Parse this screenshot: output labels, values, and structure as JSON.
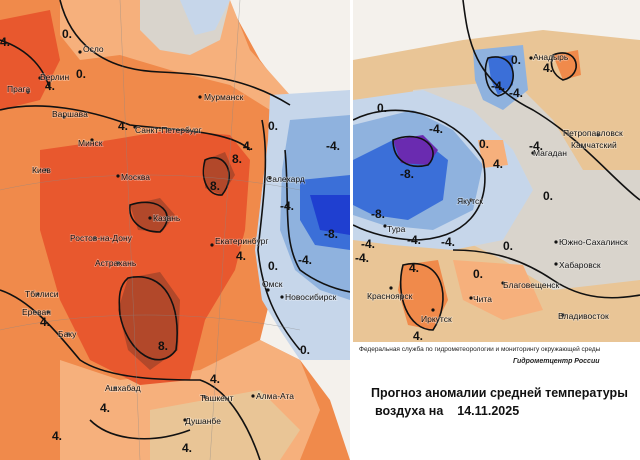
{
  "colors": {
    "strong_warm": "#e8582e",
    "warm": "#f08a4b",
    "mild_warm": "#f6b07c",
    "slight_warm": "#e9c596",
    "neutral": "#d9d4cc",
    "slight_cold": "#c6d6ea",
    "cold": "#8fb2de",
    "strong_cold": "#3b6fd8",
    "very_cold": "#1f3fd0",
    "extreme_cold": "#6a2bb0",
    "extreme_warm": "#b2482a",
    "isoline": "#111111"
  },
  "left_map": {
    "cities": [
      "Осло",
      "Берлин",
      "Прага",
      "Варшава",
      "Минск",
      "Санкт-Петербург",
      "Мурманск",
      "Киев",
      "Москва",
      "Казань",
      "Ростов-на-Дону",
      "Екатеринбург",
      "Астрахань",
      "Тбилиси",
      "Ереван",
      "Баку",
      "Ашхабад",
      "Ташкент",
      "Алма-Ата",
      "Душанбе",
      "Салехард",
      "Омск",
      "Новосибирск"
    ],
    "isoline_labels": [
      "0.",
      "0.",
      "4.",
      "4.",
      "4.",
      "4.",
      "0.",
      "8.",
      "8.",
      "4.",
      "8.",
      "4.",
      "4.",
      "4.",
      "4.",
      "0.",
      "-4.",
      "-4.",
      "-8.",
      "0.",
      "-4.",
      "4."
    ]
  },
  "right_map": {
    "cities": [
      "Анадырь",
      "Петропавловск",
      "Камчатский",
      "Магадан",
      "Якутск",
      "Тура",
      "Южно-Сахалинск",
      "Хабаровск",
      "Благовещенск",
      "Красноярск",
      "Иркутск",
      "Чита",
      "Владивосток"
    ],
    "isoline_labels": [
      "0.",
      "-4.",
      "-4.",
      "0.",
      "-4.",
      "-8.",
      "4.",
      "-8.",
      "-4.",
      "0.",
      "-4.",
      "-4.",
      "0.",
      "-4.",
      "-4.",
      "4.",
      "4.",
      "0.",
      "0.",
      "4."
    ]
  },
  "info": {
    "agency": "Федеральная служба по гидрометеорологии и мониторингу окружающей среды",
    "center": "Гидрометцентр России",
    "title_line1": "Прогноз аномалии средней температуры",
    "title_line2": "воздуха на",
    "date": "14.11.2025"
  }
}
